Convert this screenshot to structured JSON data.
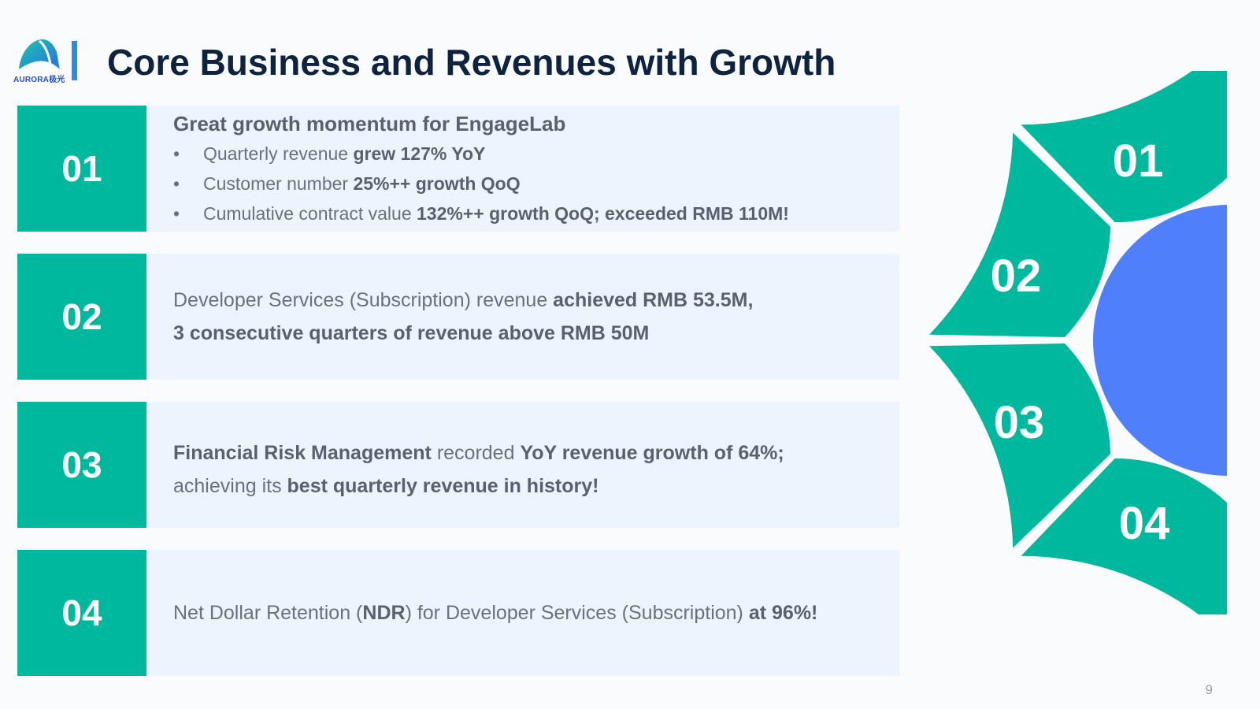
{
  "brand": {
    "logo_text": "AURORA极光"
  },
  "header": {
    "title": "Core Business and Revenues with Growth"
  },
  "items": [
    {
      "number": "01",
      "heading": "Great growth momentum for EngageLab",
      "bullets": [
        {
          "text": "Quarterly revenue ",
          "bold": "grew 127% YoY"
        },
        {
          "text": "Customer number ",
          "bold": "25%++ growth QoQ"
        },
        {
          "text": "Cumulative contract value ",
          "bold": "132%++ growth QoQ; exceeded RMB 110M!"
        }
      ]
    },
    {
      "number": "02",
      "line1_text": "Developer Services (Subscription) revenue ",
      "line1_bold": "achieved RMB 53.5M,",
      "line2_bold": "3 consecutive quarters of revenue above RMB 50M"
    },
    {
      "number": "03",
      "line1_bold_a": "Financial Risk Management",
      "line1_text": " recorded ",
      "line1_bold_b": "YoY revenue growth of 64%;",
      "line2_text": "achieving its ",
      "line2_bold": "best quarterly revenue in history!"
    },
    {
      "number": "04",
      "text_a": "Net Dollar Retention (",
      "bold_a": "NDR",
      "text_b": ") for Developer Services (Subscription) ",
      "bold_b": "at 96%!"
    }
  ],
  "ring": {
    "labels": [
      "01",
      "02",
      "03",
      "04"
    ],
    "segment_color": "#00b89d",
    "center_color": "#4f7ffa"
  },
  "page_number": "9"
}
